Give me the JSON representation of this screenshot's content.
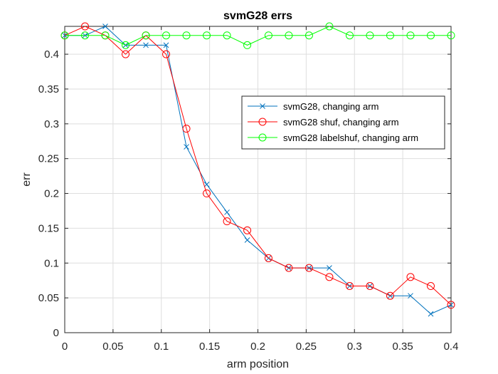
{
  "chart_data": {
    "type": "line",
    "title": "svmG28 errs",
    "xlabel": "arm position",
    "ylabel": "err",
    "xlim": [
      0,
      0.4
    ],
    "ylim": [
      0,
      0.44
    ],
    "x_ticks": [
      0,
      0.05,
      0.1,
      0.15,
      0.2,
      0.25,
      0.3,
      0.35,
      0.4
    ],
    "x_tick_labels": [
      "0",
      "0.05",
      "0.1",
      "0.15",
      "0.2",
      "0.25",
      "0.3",
      "0.35",
      "0.4"
    ],
    "y_ticks": [
      0,
      0.05,
      0.1,
      0.15,
      0.2,
      0.25,
      0.3,
      0.35,
      0.4
    ],
    "y_tick_labels": [
      "0",
      "0.05",
      "0.1",
      "0.15",
      "0.2",
      "0.25",
      "0.3",
      "0.35",
      "0.4"
    ],
    "grid": true,
    "legend_position": "upper-right",
    "x": [
      0,
      0.021,
      0.042,
      0.063,
      0.084,
      0.105,
      0.126,
      0.147,
      0.168,
      0.189,
      0.211,
      0.232,
      0.253,
      0.274,
      0.295,
      0.316,
      0.337,
      0.358,
      0.379,
      0.4
    ],
    "series": [
      {
        "name": "svmG28, changing arm",
        "color": "#0072BD",
        "marker": "x",
        "values": [
          0.427,
          0.427,
          0.44,
          0.413,
          0.413,
          0.413,
          0.267,
          0.213,
          0.173,
          0.133,
          0.107,
          0.093,
          0.093,
          0.093,
          0.067,
          0.067,
          0.053,
          0.053,
          0.027,
          0.04
        ]
      },
      {
        "name": "svmG28 shuf, changing arm",
        "color": "#FF0000",
        "marker": "o",
        "values": [
          0.427,
          0.44,
          0.427,
          0.4,
          0.427,
          0.4,
          0.293,
          0.2,
          0.16,
          0.147,
          0.107,
          0.093,
          0.093,
          0.08,
          0.067,
          0.067,
          0.053,
          0.08,
          0.067,
          0.04
        ]
      },
      {
        "name": "svmG28 labelshuf, changing arm",
        "color": "#00FF00",
        "marker": "o",
        "values": [
          0.427,
          0.427,
          0.427,
          0.413,
          0.427,
          0.427,
          0.427,
          0.427,
          0.427,
          0.413,
          0.427,
          0.427,
          0.427,
          0.44,
          0.427,
          0.427,
          0.427,
          0.427,
          0.427,
          0.427
        ]
      }
    ]
  }
}
